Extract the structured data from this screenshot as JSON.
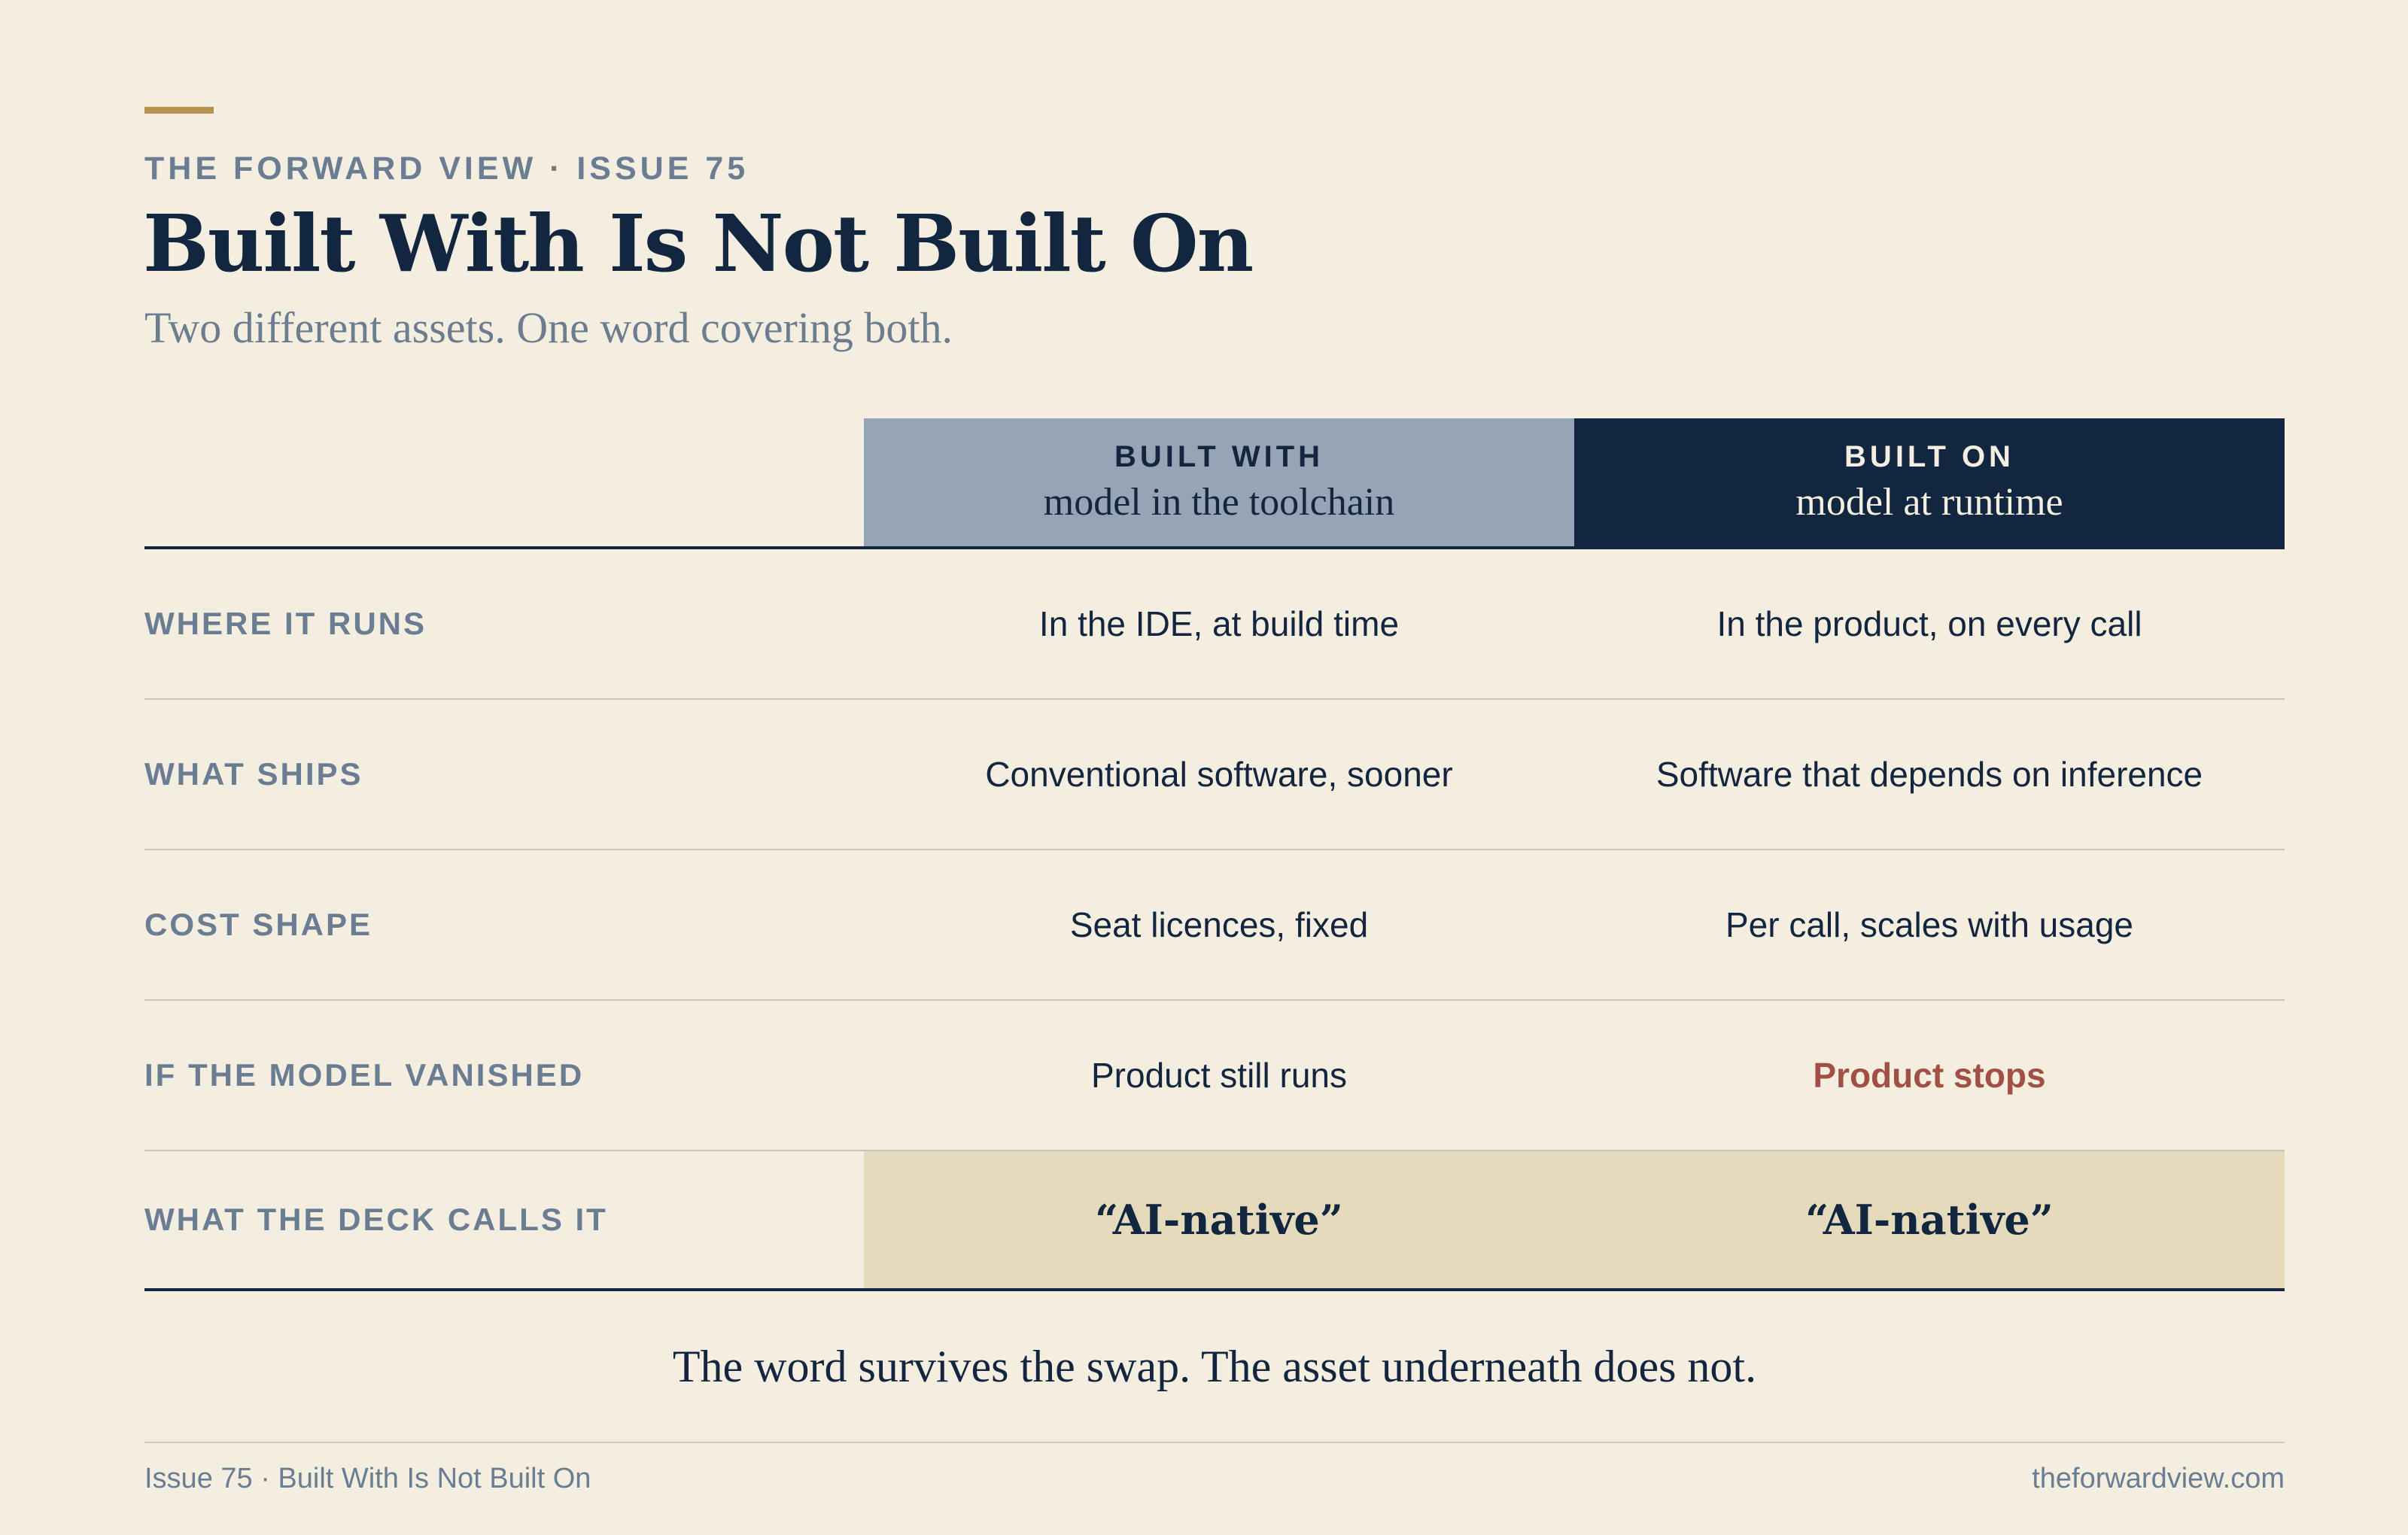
{
  "header": {
    "eyebrow": "THE FORWARD VIEW · ISSUE 75",
    "title": "Built With Is Not Built On",
    "subtitle": "Two different assets. One word covering both."
  },
  "columns": [
    {
      "label": "BUILT WITH",
      "sub": "model in the toolchain"
    },
    {
      "label": "BUILT ON",
      "sub": "model at runtime"
    }
  ],
  "rows": [
    {
      "label": "WHERE IT RUNS",
      "built_with": "In the IDE, at build time",
      "built_on": "In the product, on every call"
    },
    {
      "label": "WHAT SHIPS",
      "built_with": "Conventional software, sooner",
      "built_on": "Software that depends on inference"
    },
    {
      "label": "COST SHAPE",
      "built_with": "Seat licences, fixed",
      "built_on": "Per call, scales with usage"
    },
    {
      "label": "IF THE MODEL VANISHED",
      "built_with": "Product still runs",
      "built_on": "Product stops"
    },
    {
      "label": "WHAT THE DECK CALLS IT",
      "built_with": "“AI-native”",
      "built_on": "“AI-native”"
    }
  ],
  "takeaway": "The word survives the swap. The asset underneath does not.",
  "footer": {
    "left": "Issue 75 · Built With Is Not Built On",
    "right": "theforwardview.com"
  },
  "colors": {
    "background": "#f4eee0",
    "navy": "#13263f",
    "slate": "#96a4b5",
    "accent": "#b8924f",
    "warning": "#a24f45",
    "highlight": "#e6dabd"
  }
}
